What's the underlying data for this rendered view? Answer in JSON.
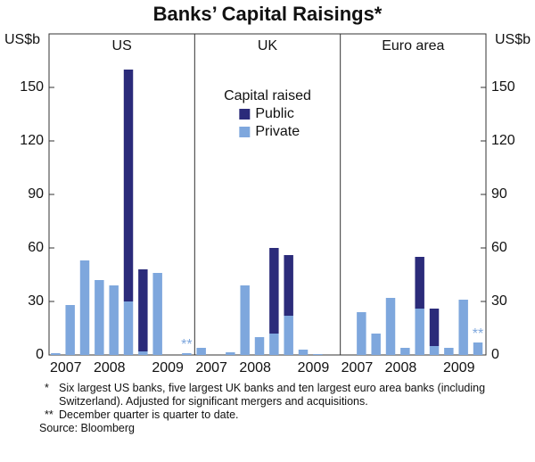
{
  "title": "Banks’ Capital Raisings*",
  "chart_data": {
    "type": "bar",
    "stacked": true,
    "panels": [
      "US",
      "UK",
      "Euro area"
    ],
    "y_label": "US$b",
    "legend_title": "Capital raised",
    "categories": [
      null,
      "2007",
      null,
      null,
      "2008",
      null,
      null,
      null,
      "2009",
      null
    ],
    "series": [
      {
        "name": "Private",
        "color": "#7ea7dd",
        "values": [
          [
            1,
            28,
            53,
            42,
            39,
            30,
            2,
            46,
            0,
            1
          ],
          [
            4,
            0,
            1.5,
            39,
            10,
            12,
            22,
            3,
            0.5,
            0
          ],
          [
            0,
            24,
            12,
            32,
            4,
            26,
            5,
            4,
            31,
            7
          ]
        ],
        "value_labels": [
          [
            null,
            null,
            null,
            null,
            null,
            null,
            null,
            null,
            null,
            "**"
          ],
          [
            null,
            null,
            null,
            null,
            null,
            null,
            null,
            null,
            null,
            null
          ],
          [
            null,
            null,
            null,
            null,
            null,
            null,
            null,
            null,
            null,
            "**"
          ]
        ]
      },
      {
        "name": "Public",
        "color": "#2b2b7a",
        "values": [
          [
            0,
            0,
            0,
            0,
            0,
            130,
            46,
            0,
            0,
            0
          ],
          [
            0,
            0,
            0,
            0,
            0,
            48,
            34,
            0,
            0,
            0
          ],
          [
            0,
            0,
            0,
            0,
            0,
            29,
            21,
            0,
            0,
            0
          ]
        ]
      }
    ],
    "ylim": [
      0,
      180
    ],
    "yticks": [
      0,
      30,
      60,
      90,
      120,
      150
    ]
  },
  "notes": [
    {
      "marker": "*",
      "text": "Six largest US banks, five largest UK banks and ten largest euro area banks (including Switzerland). Adjusted for significant mergers and acquisitions."
    },
    {
      "marker": "**",
      "text": "December quarter is quarter to date."
    }
  ],
  "source": "Source: Bloomberg"
}
